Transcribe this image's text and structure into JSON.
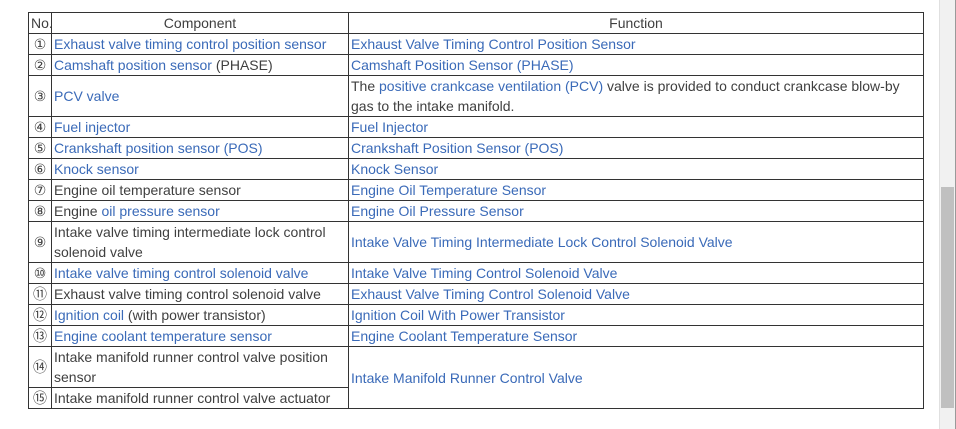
{
  "colors": {
    "link_blue": "#3a6ab8",
    "text_dark": "#3f3f3f",
    "table_border": "#333333",
    "scrollbar_track": "#f1f1f1",
    "scrollbar_thumb": "#c0c0c0",
    "page_background": "#ffffff"
  },
  "table": {
    "headers": {
      "no": "No.",
      "component": "Component",
      "function": "Function"
    },
    "rows": [
      {
        "no": "①",
        "component": [
          {
            "text": "Exhaust valve timing control position sensor",
            "link": true
          }
        ],
        "function": [
          {
            "text": "Exhaust Valve Timing Control Position Sensor",
            "link": true
          }
        ]
      },
      {
        "no": "②",
        "component": [
          {
            "text": "Camshaft position sensor",
            "link": true
          },
          {
            "text": " (PHASE)",
            "link": false
          }
        ],
        "function": [
          {
            "text": "Camshaft Position Sensor (PHASE)",
            "link": true
          }
        ]
      },
      {
        "no": "③",
        "component": [
          {
            "text": "PCV valve",
            "link": true
          }
        ],
        "function": [
          {
            "text": "The ",
            "link": false
          },
          {
            "text": "positive crankcase ventilation (PCV)",
            "link": true
          },
          {
            "text": " valve is provided to conduct crankcase blow-by gas to the intake manifold.",
            "link": false
          }
        ]
      },
      {
        "no": "④",
        "component": [
          {
            "text": "Fuel injector",
            "link": true
          }
        ],
        "function": [
          {
            "text": "Fuel Injector",
            "link": true
          }
        ]
      },
      {
        "no": "⑤",
        "component": [
          {
            "text": "Crankshaft position sensor (POS)",
            "link": true
          }
        ],
        "function": [
          {
            "text": "Crankshaft Position Sensor (POS)",
            "link": true
          }
        ]
      },
      {
        "no": "⑥",
        "component": [
          {
            "text": "Knock sensor",
            "link": true
          }
        ],
        "function": [
          {
            "text": "Knock Sensor",
            "link": true
          }
        ]
      },
      {
        "no": "⑦",
        "component": [
          {
            "text": "Engine oil temperature sensor",
            "link": false
          }
        ],
        "function": [
          {
            "text": "Engine Oil Temperature Sensor",
            "link": true
          }
        ]
      },
      {
        "no": "⑧",
        "component": [
          {
            "text": "Engine ",
            "link": false
          },
          {
            "text": "oil pressure sensor",
            "link": true
          }
        ],
        "function": [
          {
            "text": "Engine Oil Pressure Sensor",
            "link": true
          }
        ]
      },
      {
        "no": "⑨",
        "component": [
          {
            "text": "Intake valve timing intermediate lock control solenoid valve",
            "link": false
          }
        ],
        "function": [
          {
            "text": "Intake Valve Timing Intermediate Lock Control Solenoid Valve",
            "link": true
          }
        ]
      },
      {
        "no": "⑩",
        "component": [
          {
            "text": "Intake valve timing control solenoid valve",
            "link": true
          }
        ],
        "function": [
          {
            "text": "Intake Valve Timing Control Solenoid Valve",
            "link": true
          }
        ]
      },
      {
        "no": "⑪",
        "component": [
          {
            "text": "Exhaust valve timing control solenoid valve",
            "link": false
          }
        ],
        "function": [
          {
            "text": "Exhaust Valve Timing Control Solenoid Valve",
            "link": true
          }
        ]
      },
      {
        "no": "⑫",
        "component": [
          {
            "text": "Ignition coil",
            "link": true
          },
          {
            "text": " (with power transistor)",
            "link": false
          }
        ],
        "function": [
          {
            "text": "Ignition Coil With Power Transistor",
            "link": true
          }
        ]
      },
      {
        "no": "⑬",
        "component": [
          {
            "text": "Engine coolant temperature sensor",
            "link": true
          }
        ],
        "function": [
          {
            "text": "Engine Coolant Temperature Sensor",
            "link": true
          }
        ]
      },
      {
        "no": "⑭",
        "component": [
          {
            "text": "Intake manifold runner control valve position sensor",
            "link": false
          }
        ],
        "function": [
          {
            "text": "Intake Manifold Runner Control Valve",
            "link": true
          }
        ],
        "function_rowspan": 2
      },
      {
        "no": "⑮",
        "component": [
          {
            "text": "Intake manifold runner control valve actuator",
            "link": false
          }
        ],
        "function_spanned": true
      }
    ]
  },
  "scrollbar": {
    "orientation": "vertical"
  }
}
